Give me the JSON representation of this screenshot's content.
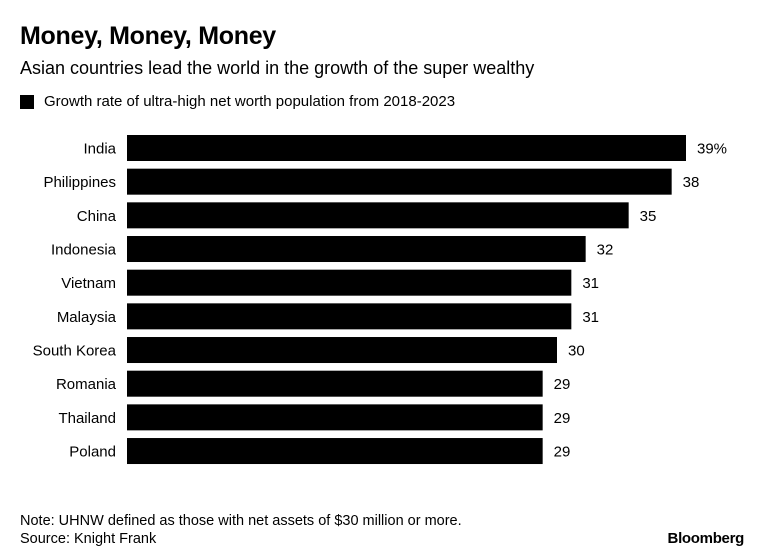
{
  "title": "Money, Money, Money",
  "subtitle": "Asian countries lead the world in the growth of the super wealthy",
  "note": "Note: UHNW defined as those with net assets of $30 million or more.",
  "source": "Source: Knight Frank",
  "logo": "Bloomberg",
  "chart_data": {
    "type": "bar",
    "orientation": "horizontal",
    "categories": [
      "India",
      "Philippines",
      "China",
      "Indonesia",
      "Vietnam",
      "Malaysia",
      "South Korea",
      "Romania",
      "Thailand",
      "Poland"
    ],
    "series": [
      {
        "name": "Growth rate of ultra-high net worth population from 2018-2023",
        "values": [
          39,
          38,
          35,
          32,
          31,
          31,
          30,
          29,
          29,
          29
        ],
        "color": "#000000"
      }
    ],
    "data_labels": [
      "39%",
      "38",
      "35",
      "32",
      "31",
      "31",
      "30",
      "29",
      "29",
      "29"
    ],
    "xlim": [
      0,
      39
    ],
    "grid": false,
    "legend": "top-left"
  }
}
